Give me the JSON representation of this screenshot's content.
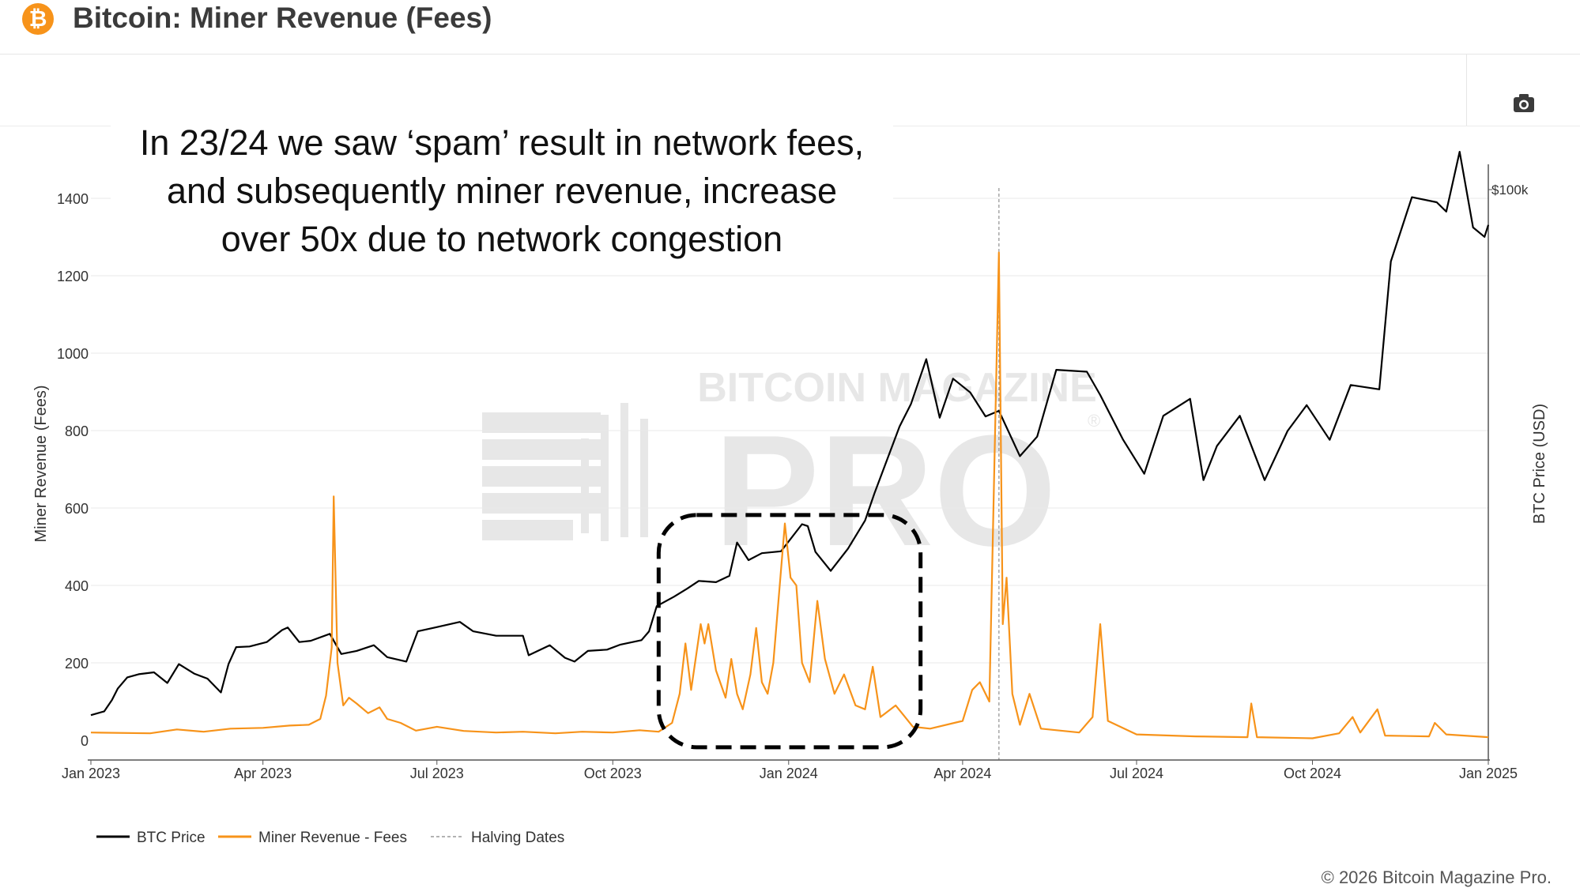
{
  "header": {
    "title": "Bitcoin: Miner Revenue (Fees)",
    "logo_glyph": "₿"
  },
  "toolbar": {
    "camera_icon": "camera-icon"
  },
  "annotation": "In 23/24 we saw ‘spam’ result in network fees,\nand subsequently miner revenue, increase\nover 50x due to network congestion",
  "watermark": {
    "line1": "BITCOIN MAGAZINE",
    "line2": "PRO",
    "mark": "®"
  },
  "footer": {
    "copyright": "© 2026 Bitcoin Magazine Pro."
  },
  "colors": {
    "btc_price": "#000000",
    "fees": "#f7931a",
    "halving": "#999999",
    "highlight_box": "#000000"
  },
  "chart_data": {
    "type": "line",
    "title": "Bitcoin: Miner Revenue (Fees)",
    "ylabel": "Miner Revenue (Fees)",
    "y2label": "BTC Price (USD)",
    "ylim": [
      0,
      1450
    ],
    "y_ticks": [
      0,
      200,
      400,
      600,
      800,
      1000,
      1200,
      1400
    ],
    "x_range": [
      "2023-01-01",
      "2025-01-01"
    ],
    "x_ticks": [
      {
        "date": "2023-01-01",
        "label": "Jan 2023"
      },
      {
        "date": "2023-04-01",
        "label": "Apr 2023"
      },
      {
        "date": "2023-07-01",
        "label": "Jul 2023"
      },
      {
        "date": "2023-10-01",
        "label": "Oct 2023"
      },
      {
        "date": "2024-01-01",
        "label": "Jan 2024"
      },
      {
        "date": "2024-04-01",
        "label": "Apr 2024"
      },
      {
        "date": "2024-07-01",
        "label": "Jul 2024"
      },
      {
        "date": "2024-10-01",
        "label": "Oct 2024"
      },
      {
        "date": "2025-01-01",
        "label": "Jan 2025"
      }
    ],
    "y2_ticks": [
      {
        "value": 100000,
        "label": "$100k"
      }
    ],
    "legend": [
      "BTC Price",
      "Miner Revenue - Fees",
      "Halving Dates"
    ],
    "legend_position": "bottom-left",
    "grid": true,
    "halving_date": "2024-04-20",
    "highlight_box": {
      "x_start": "2023-10-25",
      "x_end": "2024-03-10",
      "y_min": -18,
      "y_max": 582
    },
    "series": [
      {
        "name": "BTC Price",
        "axis": "y2",
        "points": [
          [
            "2023-01-01",
            16600
          ],
          [
            "2023-01-08",
            17200
          ],
          [
            "2023-01-12",
            19000
          ],
          [
            "2023-01-15",
            20800
          ],
          [
            "2023-01-20",
            22600
          ],
          [
            "2023-01-26",
            23100
          ],
          [
            "2023-02-03",
            23400
          ],
          [
            "2023-02-10",
            21700
          ],
          [
            "2023-02-16",
            24700
          ],
          [
            "2023-02-24",
            23200
          ],
          [
            "2023-03-03",
            22400
          ],
          [
            "2023-03-10",
            20200
          ],
          [
            "2023-03-14",
            24700
          ],
          [
            "2023-03-18",
            27400
          ],
          [
            "2023-03-25",
            27500
          ],
          [
            "2023-04-03",
            28200
          ],
          [
            "2023-04-11",
            30100
          ],
          [
            "2023-04-14",
            30500
          ],
          [
            "2023-04-20",
            28200
          ],
          [
            "2023-04-26",
            28400
          ],
          [
            "2023-05-06",
            29500
          ],
          [
            "2023-05-12",
            26300
          ],
          [
            "2023-05-20",
            26800
          ],
          [
            "2023-05-29",
            27700
          ],
          [
            "2023-06-05",
            25800
          ],
          [
            "2023-06-15",
            25100
          ],
          [
            "2023-06-21",
            29900
          ],
          [
            "2023-06-30",
            30500
          ],
          [
            "2023-07-13",
            31400
          ],
          [
            "2023-07-20",
            29900
          ],
          [
            "2023-08-01",
            29200
          ],
          [
            "2023-08-15",
            29200
          ],
          [
            "2023-08-18",
            26100
          ],
          [
            "2023-08-29",
            27700
          ],
          [
            "2023-09-06",
            25700
          ],
          [
            "2023-09-11",
            25100
          ],
          [
            "2023-09-18",
            26800
          ],
          [
            "2023-09-28",
            27000
          ],
          [
            "2023-10-05",
            27800
          ],
          [
            "2023-10-16",
            28500
          ],
          [
            "2023-10-20",
            29900
          ],
          [
            "2023-10-24",
            33900
          ],
          [
            "2023-11-02",
            35400
          ],
          [
            "2023-11-09",
            36700
          ],
          [
            "2023-11-15",
            37900
          ],
          [
            "2023-11-24",
            37700
          ],
          [
            "2023-12-01",
            38700
          ],
          [
            "2023-12-05",
            44000
          ],
          [
            "2023-12-11",
            41200
          ],
          [
            "2023-12-18",
            42300
          ],
          [
            "2023-12-28",
            42600
          ],
          [
            "2024-01-08",
            46900
          ],
          [
            "2024-01-11",
            46600
          ],
          [
            "2024-01-15",
            42500
          ],
          [
            "2024-01-23",
            39500
          ],
          [
            "2024-02-01",
            43000
          ],
          [
            "2024-02-10",
            47500
          ],
          [
            "2024-02-15",
            51900
          ],
          [
            "2024-02-28",
            62400
          ],
          [
            "2024-03-05",
            66000
          ],
          [
            "2024-03-13",
            73100
          ],
          [
            "2024-03-20",
            63800
          ],
          [
            "2024-03-27",
            70000
          ],
          [
            "2024-04-05",
            67800
          ],
          [
            "2024-04-13",
            64000
          ],
          [
            "2024-04-20",
            64900
          ],
          [
            "2024-05-01",
            57700
          ],
          [
            "2024-05-10",
            60800
          ],
          [
            "2024-05-20",
            71400
          ],
          [
            "2024-06-05",
            71100
          ],
          [
            "2024-06-12",
            67400
          ],
          [
            "2024-06-24",
            60300
          ],
          [
            "2024-07-05",
            54900
          ],
          [
            "2024-07-15",
            64100
          ],
          [
            "2024-07-29",
            66800
          ],
          [
            "2024-08-05",
            53900
          ],
          [
            "2024-08-12",
            59300
          ],
          [
            "2024-08-24",
            64100
          ],
          [
            "2024-09-06",
            53900
          ],
          [
            "2024-09-18",
            61700
          ],
          [
            "2024-09-28",
            65800
          ],
          [
            "2024-10-10",
            60300
          ],
          [
            "2024-10-21",
            69000
          ],
          [
            "2024-11-05",
            68300
          ],
          [
            "2024-11-11",
            88600
          ],
          [
            "2024-11-22",
            98800
          ],
          [
            "2024-12-05",
            98000
          ],
          [
            "2024-12-10",
            96500
          ],
          [
            "2024-12-17",
            106000
          ],
          [
            "2024-12-24",
            94000
          ],
          [
            "2024-12-30",
            92500
          ],
          [
            "2025-01-01",
            94400
          ]
        ]
      },
      {
        "name": "Miner Revenue - Fees",
        "axis": "y",
        "points": [
          [
            "2023-01-01",
            20
          ],
          [
            "2023-02-01",
            18
          ],
          [
            "2023-02-15",
            28
          ],
          [
            "2023-03-01",
            22
          ],
          [
            "2023-03-15",
            30
          ],
          [
            "2023-04-01",
            32
          ],
          [
            "2023-04-15",
            38
          ],
          [
            "2023-04-25",
            40
          ],
          [
            "2023-05-01",
            55
          ],
          [
            "2023-05-04",
            115
          ],
          [
            "2023-05-07",
            240
          ],
          [
            "2023-05-08",
            630
          ],
          [
            "2023-05-10",
            200
          ],
          [
            "2023-05-13",
            90
          ],
          [
            "2023-05-16",
            110
          ],
          [
            "2023-05-20",
            95
          ],
          [
            "2023-05-26",
            70
          ],
          [
            "2023-06-01",
            85
          ],
          [
            "2023-06-05",
            55
          ],
          [
            "2023-06-12",
            45
          ],
          [
            "2023-06-20",
            25
          ],
          [
            "2023-07-01",
            35
          ],
          [
            "2023-07-15",
            24
          ],
          [
            "2023-08-01",
            20
          ],
          [
            "2023-08-15",
            22
          ],
          [
            "2023-09-01",
            18
          ],
          [
            "2023-09-15",
            22
          ],
          [
            "2023-10-01",
            20
          ],
          [
            "2023-10-15",
            26
          ],
          [
            "2023-10-25",
            22
          ],
          [
            "2023-11-01",
            45
          ],
          [
            "2023-11-05",
            120
          ],
          [
            "2023-11-08",
            250
          ],
          [
            "2023-11-11",
            130
          ],
          [
            "2023-11-16",
            300
          ],
          [
            "2023-11-18",
            250
          ],
          [
            "2023-11-20",
            300
          ],
          [
            "2023-11-24",
            180
          ],
          [
            "2023-11-29",
            110
          ],
          [
            "2023-12-02",
            210
          ],
          [
            "2023-12-05",
            120
          ],
          [
            "2023-12-08",
            80
          ],
          [
            "2023-12-12",
            170
          ],
          [
            "2023-12-15",
            290
          ],
          [
            "2023-12-18",
            150
          ],
          [
            "2023-12-21",
            120
          ],
          [
            "2023-12-24",
            200
          ],
          [
            "2023-12-27",
            380
          ],
          [
            "2023-12-30",
            560
          ],
          [
            "2024-01-02",
            420
          ],
          [
            "2024-01-05",
            400
          ],
          [
            "2024-01-08",
            200
          ],
          [
            "2024-01-12",
            150
          ],
          [
            "2024-01-16",
            360
          ],
          [
            "2024-01-20",
            210
          ],
          [
            "2024-01-25",
            120
          ],
          [
            "2024-01-30",
            170
          ],
          [
            "2024-02-05",
            90
          ],
          [
            "2024-02-10",
            80
          ],
          [
            "2024-02-14",
            190
          ],
          [
            "2024-02-18",
            60
          ],
          [
            "2024-02-26",
            90
          ],
          [
            "2024-03-06",
            35
          ],
          [
            "2024-03-15",
            30
          ],
          [
            "2024-04-01",
            50
          ],
          [
            "2024-04-06",
            130
          ],
          [
            "2024-04-10",
            150
          ],
          [
            "2024-04-15",
            100
          ],
          [
            "2024-04-20",
            1260
          ],
          [
            "2024-04-22",
            300
          ],
          [
            "2024-04-24",
            420
          ],
          [
            "2024-04-27",
            120
          ],
          [
            "2024-05-01",
            40
          ],
          [
            "2024-05-06",
            120
          ],
          [
            "2024-05-12",
            30
          ],
          [
            "2024-06-01",
            20
          ],
          [
            "2024-06-08",
            60
          ],
          [
            "2024-06-12",
            300
          ],
          [
            "2024-06-16",
            50
          ],
          [
            "2024-07-01",
            15
          ],
          [
            "2024-08-01",
            10
          ],
          [
            "2024-08-28",
            8
          ],
          [
            "2024-08-30",
            95
          ],
          [
            "2024-09-02",
            8
          ],
          [
            "2024-10-01",
            5
          ],
          [
            "2024-10-15",
            18
          ],
          [
            "2024-10-22",
            60
          ],
          [
            "2024-10-26",
            20
          ],
          [
            "2024-11-04",
            80
          ],
          [
            "2024-11-08",
            12
          ],
          [
            "2024-12-01",
            10
          ],
          [
            "2024-12-04",
            45
          ],
          [
            "2024-12-10",
            15
          ],
          [
            "2025-01-01",
            8
          ]
        ]
      }
    ]
  }
}
